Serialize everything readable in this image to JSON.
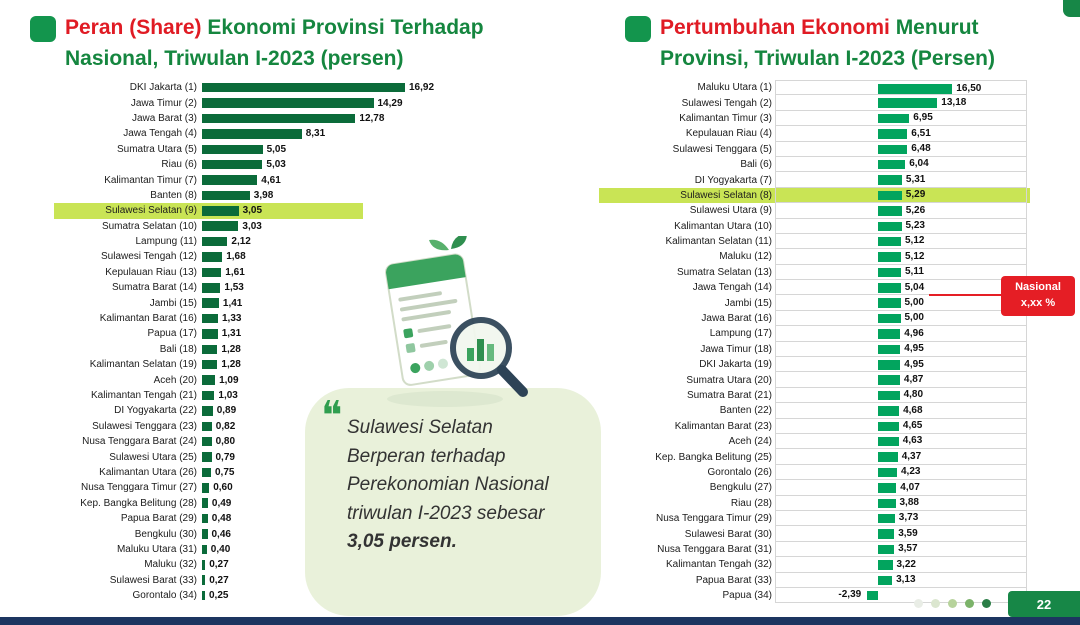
{
  "page": {
    "number": "22"
  },
  "colors": {
    "title_red": "#e01b24",
    "title_green": "#15863f",
    "left_bar_green": "#0b6b3a",
    "right_bar_green": "#02a45e",
    "highlight_lime": "#c9e455",
    "callout_red": "#e51e25",
    "footer_navy": "#1c3560",
    "page_box_green": "#178747",
    "quote_bg": "#e9f1da"
  },
  "pagination_dots": [
    "#e9ede6",
    "#dbe6cf",
    "#b7d39c",
    "#7cb36a",
    "#2a7d46"
  ],
  "quote": {
    "mark": "❝",
    "text": "Sulawesi Selatan Berperan terhadap Perekonomian Nasional triwulan I-2023 sebesar",
    "bold": "3,05 persen."
  },
  "chart_data": [
    {
      "type": "bar",
      "orientation": "horizontal",
      "title": "Peran (Share) Ekonomi Provinsi Terhadap Nasional, Triwulan I-2023 (persen)",
      "title_parts": {
        "red": "Peran (Share)",
        "green": " Ekonomi Provinsi Terhadap",
        "line2": "Nasional, Triwulan I-2023 (persen)"
      },
      "unit": "persen",
      "xlim": [
        0,
        17.5
      ],
      "grid": false,
      "bar_color": "#0b6b3a",
      "highlight_color": "#c9e455",
      "highlight_index": 8,
      "highlight_category": "Sulawesi Selatan (9)",
      "categories": [
        "DKI Jakarta (1)",
        "Jawa Timur (2)",
        "Jawa Barat (3)",
        "Jawa Tengah (4)",
        "Sumatra Utara (5)",
        "Riau (6)",
        "Kalimantan Timur (7)",
        "Banten (8)",
        "Sulawesi Selatan (9)",
        "Sumatra Selatan (10)",
        "Lampung (11)",
        "Sulawesi Tengah (12)",
        "Kepulauan Riau (13)",
        "Sumatra Barat (14)",
        "Jambi (15)",
        "Kalimantan Barat (16)",
        "Papua (17)",
        "Bali (18)",
        "Kalimantan Selatan (19)",
        "Aceh (20)",
        "Kalimantan Tengah (21)",
        "DI Yogyakarta (22)",
        "Sulawesi Tenggara (23)",
        "Nusa Tenggara Barat (24)",
        "Sulawesi Utara (25)",
        "Kalimantan Utara (26)",
        "Nusa Tenggara Timur (27)",
        "Kep. Bangka Belitung (28)",
        "Papua Barat (29)",
        "Bengkulu (30)",
        "Maluku Utara (31)",
        "Maluku (32)",
        "Sulawesi Barat (33)",
        "Gorontalo (34)"
      ],
      "values": [
        16.92,
        14.29,
        12.78,
        8.31,
        5.05,
        5.03,
        4.61,
        3.98,
        3.05,
        3.03,
        2.12,
        1.68,
        1.61,
        1.53,
        1.41,
        1.33,
        1.31,
        1.28,
        1.28,
        1.09,
        1.03,
        0.89,
        0.82,
        0.8,
        0.79,
        0.75,
        0.6,
        0.49,
        0.48,
        0.46,
        0.4,
        0.27,
        0.27,
        0.25
      ]
    },
    {
      "type": "bar",
      "orientation": "horizontal",
      "title": "Pertumbuhan Ekonomi Menurut Provinsi, Triwulan I-2023 (Persen)",
      "title_parts": {
        "red": "Pertumbuhan Ekonomi",
        "green": " Menurut",
        "line2": "Provinsi, Triwulan I-2023 (Persen)"
      },
      "unit": "persen",
      "xlim": [
        -3,
        17.5
      ],
      "grid": true,
      "bar_color": "#02a45e",
      "highlight_color": "#c9e455",
      "highlight_index": 7,
      "highlight_category": "Sulawesi Selatan (8)",
      "callout": {
        "line1": "Nasional",
        "line2": "x,xx %",
        "target_category": "Jawa Tengah (14)"
      },
      "categories": [
        "Maluku Utara (1)",
        "Sulawesi Tengah (2)",
        "Kalimantan Timur (3)",
        "Kepulauan Riau (4)",
        "Sulawesi Tenggara (5)",
        "Bali (6)",
        "DI Yogyakarta (7)",
        "Sulawesi Selatan (8)",
        "Sulawesi Utara (9)",
        "Kalimantan Utara (10)",
        "Kalimantan Selatan (11)",
        "Maluku (12)",
        "Sumatra Selatan (13)",
        "Jawa Tengah (14)",
        "Jambi (15)",
        "Jawa Barat (16)",
        "Lampung (17)",
        "Jawa Timur (18)",
        "DKI Jakarta (19)",
        "Sumatra Utara (20)",
        "Sumatra Barat (21)",
        "Banten (22)",
        "Kalimantan Barat (23)",
        "Aceh (24)",
        "Kep. Bangka Belitung (25)",
        "Gorontalo (26)",
        "Bengkulu (27)",
        "Riau (28)",
        "Nusa Tenggara Timur (29)",
        "Sulawesi Barat (30)",
        "Nusa Tenggara Barat (31)",
        "Kalimantan Tengah (32)",
        "Papua Barat (33)",
        "Papua (34)"
      ],
      "values": [
        16.5,
        13.18,
        6.95,
        6.51,
        6.48,
        6.04,
        5.31,
        5.29,
        5.26,
        5.23,
        5.12,
        5.12,
        5.11,
        5.04,
        5.0,
        5.0,
        4.96,
        4.95,
        4.95,
        4.87,
        4.8,
        4.68,
        4.65,
        4.63,
        4.37,
        4.23,
        4.07,
        3.88,
        3.73,
        3.59,
        3.57,
        3.22,
        3.13,
        -2.39
      ]
    }
  ]
}
